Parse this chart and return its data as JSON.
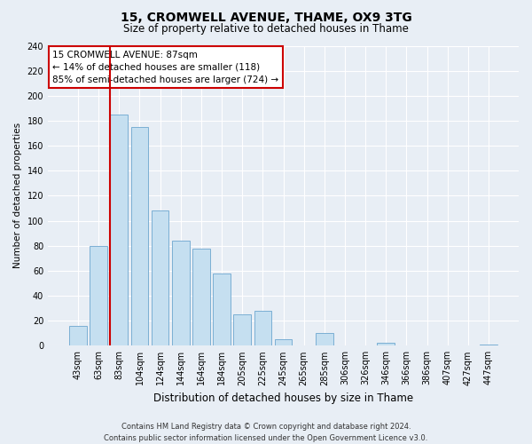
{
  "title1": "15, CROMWELL AVENUE, THAME, OX9 3TG",
  "title2": "Size of property relative to detached houses in Thame",
  "xlabel": "Distribution of detached houses by size in Thame",
  "ylabel": "Number of detached properties",
  "categories": [
    "43sqm",
    "63sqm",
    "83sqm",
    "104sqm",
    "124sqm",
    "144sqm",
    "164sqm",
    "184sqm",
    "205sqm",
    "225sqm",
    "245sqm",
    "265sqm",
    "285sqm",
    "306sqm",
    "326sqm",
    "346sqm",
    "366sqm",
    "386sqm",
    "407sqm",
    "427sqm",
    "447sqm"
  ],
  "values": [
    16,
    80,
    185,
    175,
    108,
    84,
    78,
    58,
    25,
    28,
    5,
    0,
    10,
    0,
    0,
    2,
    0,
    0,
    0,
    0,
    1
  ],
  "bar_color": "#c5dff0",
  "bar_edge_color": "#7bafd4",
  "vline_index": 2,
  "vline_color": "#cc0000",
  "ylim": [
    0,
    240
  ],
  "yticks": [
    0,
    20,
    40,
    60,
    80,
    100,
    120,
    140,
    160,
    180,
    200,
    220,
    240
  ],
  "annotation_title": "15 CROMWELL AVENUE: 87sqm",
  "annotation_line1": "← 14% of detached houses are smaller (118)",
  "annotation_line2": "85% of semi-detached houses are larger (724) →",
  "annotation_box_color": "#ffffff",
  "annotation_box_edge": "#cc0000",
  "footer1": "Contains HM Land Registry data © Crown copyright and database right 2024.",
  "footer2": "Contains public sector information licensed under the Open Government Licence v3.0.",
  "bg_color": "#e8eef5",
  "plot_bg_color": "#e8eef5",
  "grid_color": "#ffffff",
  "title1_fontsize": 10,
  "title2_fontsize": 8.5,
  "xlabel_fontsize": 8.5,
  "ylabel_fontsize": 7.5,
  "tick_fontsize": 7,
  "ann_fontsize": 7.5,
  "footer_fontsize": 6
}
